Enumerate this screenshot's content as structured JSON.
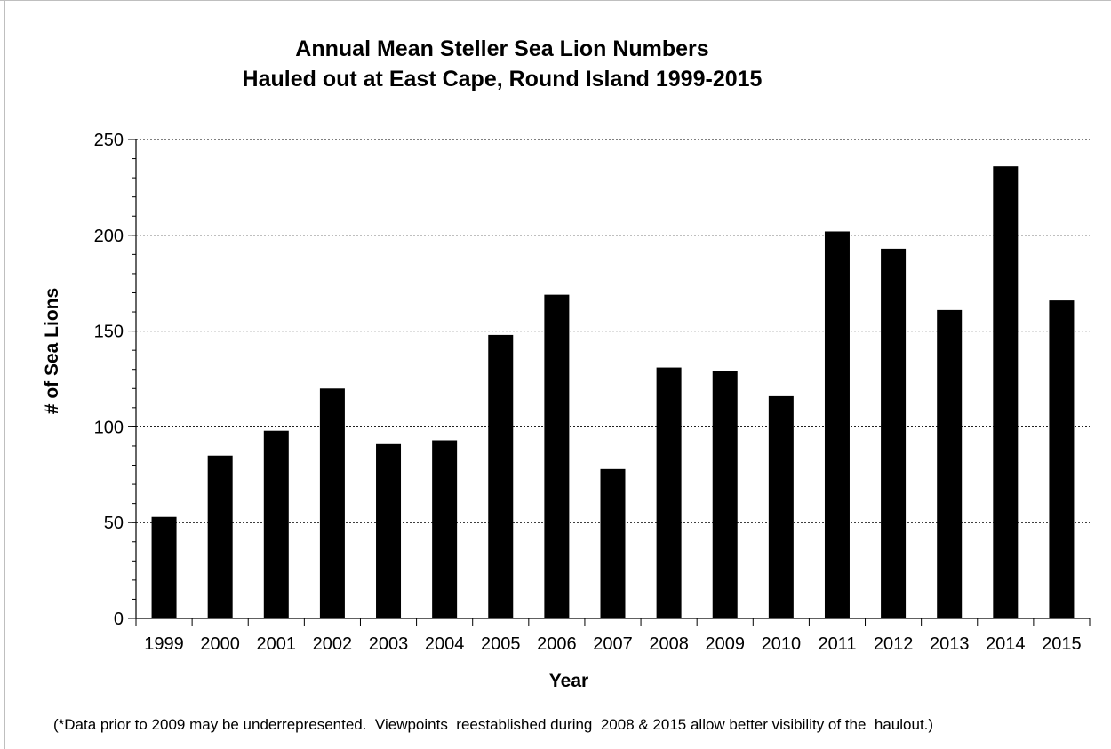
{
  "chart_data": {
    "type": "bar",
    "title": [
      "Annual Mean Steller Sea Lion Numbers",
      "Hauled out at East Cape, Round Island 1999-2015"
    ],
    "xlabel": "Year",
    "ylabel": "# of Sea Lions",
    "categories": [
      "1999",
      "2000",
      "2001",
      "2002",
      "2003",
      "2004",
      "2005",
      "2006",
      "2007",
      "2008",
      "2009",
      "2010",
      "2011",
      "2012",
      "2013",
      "2014",
      "2015"
    ],
    "values": [
      53,
      85,
      98,
      120,
      91,
      93,
      148,
      169,
      78,
      131,
      129,
      116,
      202,
      193,
      161,
      236,
      166
    ],
    "ylim": [
      0,
      250
    ],
    "yticks": [
      0,
      50,
      100,
      150,
      200,
      250
    ],
    "grid": "horizontal dashed",
    "bar_color": "#000000",
    "legend": "none"
  },
  "footnote": "(*Data prior to 2009 may be underrepresented.  Viewpoints  reestablished during  2008 & 2015 allow better visibility of the  haulout.)"
}
